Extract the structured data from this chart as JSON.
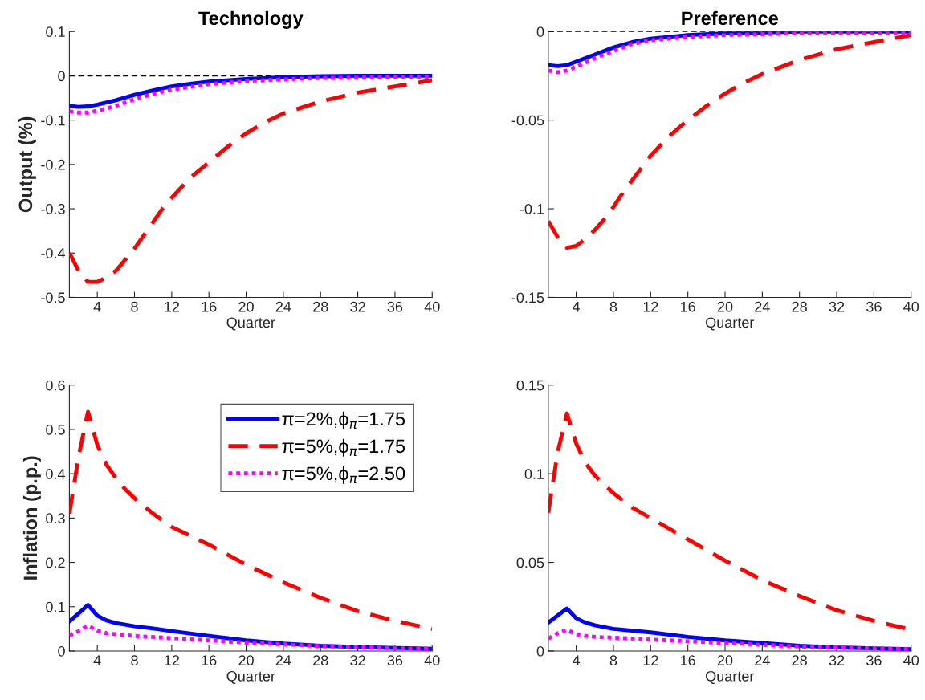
{
  "chart_data": [
    {
      "type": "line",
      "title": "Technology",
      "ylabel": "Output (%)",
      "xlabel": "Quarter",
      "xlim": [
        1,
        40
      ],
      "xticks": [
        4,
        8,
        12,
        16,
        20,
        24,
        28,
        32,
        36,
        40
      ],
      "ylim": [
        -0.5,
        0.1
      ],
      "yticks": [
        {
          "value": -0.5,
          "label": "-0.5"
        },
        {
          "value": -0.4,
          "label": "-0.4"
        },
        {
          "value": -0.3,
          "label": "-0.3"
        },
        {
          "value": -0.2,
          "label": "-0.2"
        },
        {
          "value": -0.1,
          "label": "-0.1"
        },
        0,
        0.1
      ],
      "grid": false,
      "legend": false,
      "ref_lines": [
        {
          "axis": "y",
          "value": 0,
          "color": "#000000",
          "line_style": "dashed"
        }
      ],
      "series": [
        {
          "color": "#0000ff",
          "line_style": "solid",
          "x": [
            1,
            2,
            3,
            4,
            6,
            8,
            10,
            12,
            14,
            16,
            20,
            24,
            28,
            32,
            36,
            40
          ],
          "values": [
            -0.068,
            -0.07,
            -0.069,
            -0.065,
            -0.055,
            -0.043,
            -0.033,
            -0.024,
            -0.018,
            -0.013,
            -0.007,
            -0.003,
            -0.001,
            0,
            0,
            0
          ]
        },
        {
          "color": "#ff0000",
          "line_style": "dashed",
          "x": [
            1,
            2,
            3,
            4,
            5,
            6,
            7,
            8,
            9,
            10,
            11,
            12,
            14,
            16,
            18,
            20,
            22,
            24,
            28,
            32,
            36,
            40
          ],
          "values": [
            -0.4,
            -0.44,
            -0.465,
            -0.465,
            -0.455,
            -0.44,
            -0.415,
            -0.39,
            -0.36,
            -0.33,
            -0.3,
            -0.275,
            -0.23,
            -0.195,
            -0.16,
            -0.13,
            -0.105,
            -0.085,
            -0.058,
            -0.038,
            -0.024,
            -0.01
          ]
        },
        {
          "color": "#ff00ff",
          "line_style": "dotted",
          "x": [
            1,
            2,
            3,
            4,
            6,
            8,
            10,
            12,
            16,
            20,
            24,
            28,
            32,
            36,
            40
          ],
          "values": [
            -0.08,
            -0.083,
            -0.083,
            -0.079,
            -0.068,
            -0.053,
            -0.041,
            -0.031,
            -0.019,
            -0.012,
            -0.008,
            -0.005,
            -0.004,
            -0.002,
            -0.002
          ]
        }
      ]
    },
    {
      "type": "line",
      "title": "Preference",
      "xlabel": "Quarter",
      "xlim": [
        1,
        40
      ],
      "xticks": [
        4,
        8,
        12,
        16,
        20,
        24,
        28,
        32,
        36,
        40
      ],
      "ylim": [
        -0.15,
        0
      ],
      "yticks": [
        {
          "value": -0.15,
          "label": "-0.15"
        },
        {
          "value": -0.1,
          "label": "-0.1"
        },
        {
          "value": -0.05,
          "label": "-0.05"
        },
        0
      ],
      "grid": false,
      "legend": false,
      "ref_lines": [
        {
          "axis": "y",
          "value": 0,
          "color": "#000000",
          "line_style": "dashed"
        }
      ],
      "series": [
        {
          "color": "#0000ff",
          "line_style": "solid",
          "x": [
            1,
            2,
            3,
            4,
            6,
            8,
            10,
            12,
            16,
            20,
            28,
            40
          ],
          "values": [
            -0.019,
            -0.0195,
            -0.019,
            -0.017,
            -0.013,
            -0.009,
            -0.006,
            -0.004,
            -0.002,
            -0.001,
            0,
            0
          ]
        },
        {
          "color": "#ff0000",
          "line_style": "dashed",
          "x": [
            1,
            2,
            3,
            4,
            5,
            6,
            7,
            8,
            9,
            10,
            12,
            14,
            16,
            18,
            20,
            22,
            24,
            28,
            32,
            36,
            40
          ],
          "values": [
            -0.107,
            -0.116,
            -0.122,
            -0.121,
            -0.117,
            -0.112,
            -0.106,
            -0.099,
            -0.091,
            -0.084,
            -0.07,
            -0.059,
            -0.05,
            -0.042,
            -0.035,
            -0.029,
            -0.024,
            -0.016,
            -0.01,
            -0.006,
            -0.002
          ]
        },
        {
          "color": "#ff00ff",
          "line_style": "dotted",
          "x": [
            1,
            2,
            3,
            4,
            6,
            8,
            10,
            12,
            16,
            20,
            28,
            40
          ],
          "values": [
            -0.022,
            -0.023,
            -0.022,
            -0.02,
            -0.015,
            -0.011,
            -0.007,
            -0.005,
            -0.003,
            -0.002,
            -0.001,
            -0.001
          ]
        }
      ]
    },
    {
      "type": "line",
      "ylabel": "Inflation (p.p.)",
      "xlabel": "Quarter",
      "xlim": [
        1,
        40
      ],
      "xticks": [
        4,
        8,
        12,
        16,
        20,
        24,
        28,
        32,
        36,
        40
      ],
      "ylim": [
        0,
        0.6
      ],
      "yticks": [
        0,
        0.1,
        0.2,
        0.3,
        0.4,
        0.5,
        0.6
      ],
      "grid": false,
      "legend": "top right",
      "series": [
        {
          "name": "π=2%,ϕ$_{π}$=1.75",
          "color": "#0000ff",
          "line_style": "solid",
          "x": [
            1,
            2,
            3,
            4,
            5,
            6,
            8,
            10,
            12,
            16,
            20,
            24,
            28,
            32,
            36,
            40
          ],
          "values": [
            0.067,
            0.085,
            0.104,
            0.08,
            0.069,
            0.063,
            0.056,
            0.051,
            0.045,
            0.034,
            0.024,
            0.017,
            0.012,
            0.009,
            0.007,
            0.005
          ]
        },
        {
          "name": "π=5%,ϕ$_{π}$=1.75",
          "color": "#ff0000",
          "line_style": "dashed",
          "x": [
            1,
            2,
            3,
            4,
            5,
            6,
            7,
            8,
            10,
            12,
            16,
            20,
            24,
            28,
            32,
            36,
            40
          ],
          "values": [
            0.31,
            0.44,
            0.54,
            0.465,
            0.42,
            0.39,
            0.365,
            0.345,
            0.31,
            0.28,
            0.24,
            0.195,
            0.155,
            0.12,
            0.09,
            0.068,
            0.05
          ]
        },
        {
          "name": "π=5%,ϕ$_{π}$=2.50",
          "color": "#ff00ff",
          "line_style": "dotted",
          "x": [
            1,
            2,
            3,
            4,
            5,
            6,
            8,
            12,
            16,
            20,
            24,
            28,
            32,
            36,
            40
          ],
          "values": [
            0.035,
            0.045,
            0.057,
            0.046,
            0.04,
            0.038,
            0.034,
            0.029,
            0.024,
            0.019,
            0.015,
            0.011,
            0.009,
            0.006,
            0.005
          ]
        }
      ]
    },
    {
      "type": "line",
      "xlabel": "Quarter",
      "xlim": [
        1,
        40
      ],
      "xticks": [
        4,
        8,
        12,
        16,
        20,
        24,
        28,
        32,
        36,
        40
      ],
      "ylim": [
        0,
        0.15
      ],
      "yticks": [
        0,
        0.05,
        0.1,
        0.15
      ],
      "grid": false,
      "legend": false,
      "series": [
        {
          "color": "#0000ff",
          "line_style": "solid",
          "x": [
            1,
            2,
            3,
            4,
            5,
            6,
            8,
            12,
            16,
            20,
            24,
            28,
            32,
            36,
            40
          ],
          "values": [
            0.016,
            0.02,
            0.024,
            0.0185,
            0.016,
            0.0145,
            0.0125,
            0.0105,
            0.008,
            0.006,
            0.0045,
            0.003,
            0.002,
            0.0015,
            0.001
          ]
        },
        {
          "color": "#ff0000",
          "line_style": "dashed",
          "x": [
            1,
            2,
            3,
            4,
            5,
            6,
            8,
            10,
            12,
            16,
            20,
            24,
            28,
            32,
            36,
            40
          ],
          "values": [
            0.078,
            0.112,
            0.134,
            0.117,
            0.106,
            0.099,
            0.089,
            0.081,
            0.075,
            0.063,
            0.051,
            0.04,
            0.031,
            0.023,
            0.017,
            0.012
          ]
        },
        {
          "color": "#ff00ff",
          "line_style": "dotted",
          "x": [
            1,
            2,
            3,
            4,
            5,
            6,
            8,
            12,
            16,
            20,
            24,
            28,
            32,
            36,
            40
          ],
          "values": [
            0.007,
            0.01,
            0.012,
            0.0095,
            0.0085,
            0.008,
            0.0075,
            0.0065,
            0.0055,
            0.0045,
            0.0035,
            0.0025,
            0.002,
            0.0015,
            0.001
          ]
        }
      ]
    }
  ]
}
